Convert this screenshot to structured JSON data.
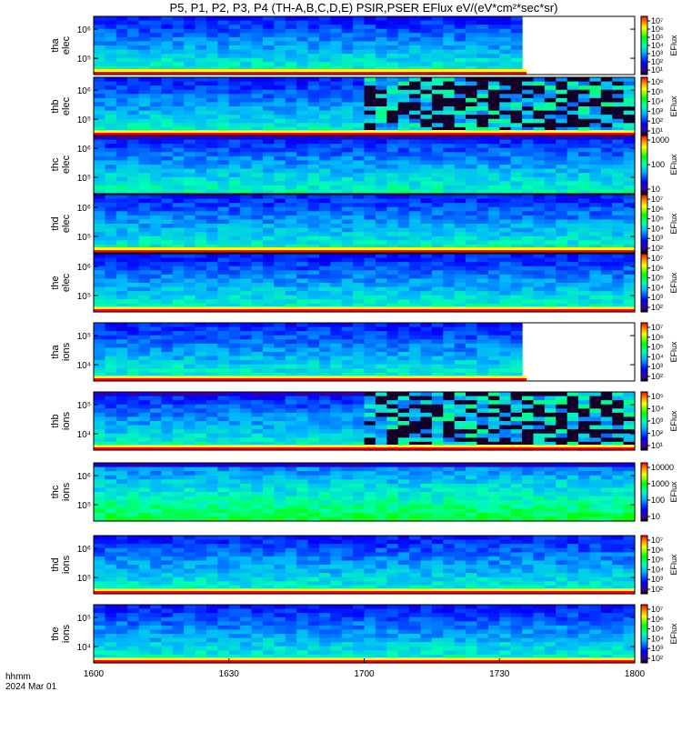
{
  "figure": {
    "title": "P5, P1, P2, P3, P4 (TH-A,B,C,D,E) PSIR,PSER EFlux eV/(eV*cm²*sec*sr)",
    "time_axis": {
      "label": "hhmm",
      "date": "2024 Mar 01",
      "ticks": [
        "1600",
        "1630",
        "1700",
        "1730",
        "1800"
      ]
    }
  },
  "chart_data": [
    {
      "type": "heatmap",
      "probe": "tha",
      "species": "elec",
      "ylabel_lines": [
        "tha",
        "elec"
      ],
      "yticks": [
        "10^6",
        "10^5"
      ],
      "colorbar_label": "EFlux",
      "colorbar_ticks": [
        "10^7",
        "10^6",
        "10^5",
        "10^4",
        "10^3",
        "10^2",
        "10^1"
      ],
      "x_range": [
        "1600",
        "1800"
      ],
      "data_end": "1736",
      "colormap": "rainbow"
    },
    {
      "type": "heatmap",
      "probe": "thb",
      "species": "elec",
      "ylabel_lines": [
        "thb",
        "elec"
      ],
      "yticks": [
        "10^6",
        "10^5"
      ],
      "colorbar_label": "EFlux",
      "colorbar_ticks": [
        "10^6",
        "10^5",
        "10^4",
        "10^3",
        "10^2",
        "10^1"
      ],
      "x_range": [
        "1600",
        "1800"
      ],
      "noisy_after": "1700",
      "colormap": "rainbow"
    },
    {
      "type": "heatmap",
      "probe": "thc",
      "species": "elec",
      "ylabel_lines": [
        "thc",
        "elec"
      ],
      "yticks": [
        "10^6",
        "10^5"
      ],
      "colorbar_label": "EFlux",
      "colorbar_ticks": [
        "1000",
        "100",
        "10"
      ],
      "x_range": [
        "1600",
        "1800"
      ],
      "colormap": "rainbow"
    },
    {
      "type": "heatmap",
      "probe": "thd",
      "species": "elec",
      "ylabel_lines": [
        "thd",
        "elec"
      ],
      "yticks": [
        "10^6",
        "10^5"
      ],
      "colorbar_label": "EFlux",
      "colorbar_ticks": [
        "10^7",
        "10^6",
        "10^5",
        "10^4",
        "10^3",
        "10^2"
      ],
      "x_range": [
        "1600",
        "1800"
      ],
      "colormap": "rainbow"
    },
    {
      "type": "heatmap",
      "probe": "the",
      "species": "elec",
      "ylabel_lines": [
        "the",
        "elec"
      ],
      "yticks": [
        "10^6",
        "10^5"
      ],
      "colorbar_label": "EFlux",
      "colorbar_ticks": [
        "10^7",
        "10^6",
        "10^5",
        "10^4",
        "10^3",
        "10^2"
      ],
      "x_range": [
        "1600",
        "1800"
      ],
      "colormap": "rainbow"
    },
    {
      "type": "heatmap",
      "probe": "tha",
      "species": "ions",
      "ylabel_lines": [
        "tha",
        "ions"
      ],
      "yticks": [
        "10^5",
        "10^4"
      ],
      "colorbar_label": "EFlux",
      "colorbar_ticks": [
        "10^7",
        "10^6",
        "10^5",
        "10^4",
        "10^3",
        "10^2"
      ],
      "x_range": [
        "1600",
        "1800"
      ],
      "data_end": "1736",
      "colormap": "rainbow"
    },
    {
      "type": "heatmap",
      "probe": "thb",
      "species": "ions",
      "ylabel_lines": [
        "thb",
        "ions"
      ],
      "yticks": [
        "10^5",
        "10^4"
      ],
      "colorbar_label": "EFlux",
      "colorbar_ticks": [
        "10^5",
        "10^4",
        "10^3",
        "10^2",
        "10^1"
      ],
      "x_range": [
        "1600",
        "1800"
      ],
      "noisy_after": "1700",
      "colormap": "rainbow"
    },
    {
      "type": "heatmap",
      "probe": "thc",
      "species": "ions",
      "ylabel_lines": [
        "thc",
        "ions"
      ],
      "yticks": [
        "10^6",
        "10^5"
      ],
      "colorbar_label": "EFlux",
      "colorbar_ticks": [
        "10000",
        "1000",
        "100",
        "10"
      ],
      "x_range": [
        "1600",
        "1800"
      ],
      "colormap": "rainbow"
    },
    {
      "type": "heatmap",
      "probe": "thd",
      "species": "ions",
      "ylabel_lines": [
        "thd",
        "ions"
      ],
      "yticks": [
        "10^6",
        "10^5"
      ],
      "colorbar_label": "EFlux",
      "colorbar_ticks": [
        "10^7",
        "10^6",
        "10^5",
        "10^4",
        "10^3",
        "10^2"
      ],
      "x_range": [
        "1600",
        "1800"
      ],
      "colormap": "rainbow"
    },
    {
      "type": "heatmap",
      "probe": "the",
      "species": "ions",
      "ylabel_lines": [
        "the",
        "ions"
      ],
      "yticks": [
        "10^5",
        "10^4"
      ],
      "colorbar_label": "EFlux",
      "colorbar_ticks": [
        "10^7",
        "10^6",
        "10^5",
        "10^4",
        "10^3",
        "10^2"
      ],
      "x_range": [
        "1600",
        "1800"
      ],
      "colormap": "rainbow"
    }
  ]
}
